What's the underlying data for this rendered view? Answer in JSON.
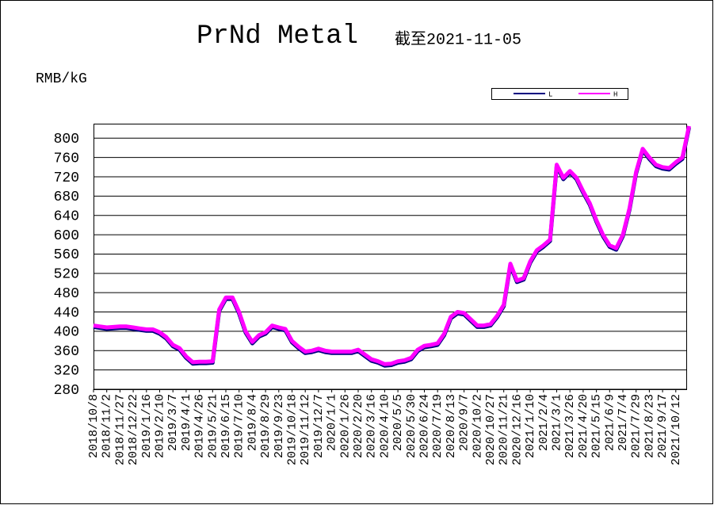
{
  "chart_data": {
    "type": "line",
    "title": "PrNd Metal",
    "subtitle": "截至2021-11-05",
    "y_label": "RMB/kG",
    "categories": [
      "2018/10/8",
      null,
      "2018/11/2",
      null,
      "2018/11/27",
      null,
      "2018/12/22",
      null,
      "2019/1/16",
      null,
      "2019/2/10",
      null,
      "2019/3/7",
      null,
      "2019/4/1",
      null,
      "2019/4/26",
      null,
      "2019/5/21",
      null,
      "2019/6/15",
      null,
      "2019/7/10",
      null,
      "2019/8/4",
      null,
      "2019/8/29",
      null,
      "2019/9/23",
      null,
      "2019/10/18",
      null,
      "2019/11/12",
      null,
      "2019/12/7",
      null,
      "2020/1/1",
      null,
      "2020/1/26",
      null,
      "2020/2/20",
      null,
      "2020/3/16",
      null,
      "2020/4/10",
      null,
      "2020/5/5",
      null,
      "2020/5/30",
      null,
      "2020/6/24",
      null,
      "2020/7/19",
      null,
      "2020/8/13",
      null,
      "2020/9/7",
      null,
      "2020/10/2",
      null,
      "2020/10/27",
      null,
      "2020/11/21",
      null,
      "2020/12/16",
      null,
      "2021/1/10",
      null,
      "2021/2/4",
      null,
      "2021/3/1",
      null,
      "2021/3/26",
      null,
      "2021/4/20",
      null,
      "2021/5/15",
      null,
      "2021/6/9",
      null,
      "2021/7/4",
      null,
      "2021/7/29",
      null,
      "2021/8/23",
      null,
      "2021/9/17",
      null,
      "2021/10/12",
      null,
      null
    ],
    "series": [
      {
        "name": "L",
        "color": "#000080",
        "values": [
          409,
          407,
          405,
          406,
          407,
          407,
          405,
          403,
          401,
          401,
          395,
          385,
          369,
          362,
          345,
          333,
          334,
          334,
          335,
          442,
          467,
          467,
          437,
          397,
          375,
          389,
          395,
          409,
          405,
          402,
          377,
          365,
          355,
          357,
          361,
          357,
          355,
          355,
          355,
          355,
          359,
          349,
          339,
          335,
          329,
          330,
          335,
          337,
          342,
          359,
          367,
          369,
          372,
          392,
          427,
          437,
          435,
          422,
          409,
          409,
          412,
          429,
          452,
          537,
          502,
          507,
          542,
          565,
          575,
          587,
          742,
          715,
          729,
          715,
          687,
          662,
          627,
          597,
          575,
          569,
          597,
          652,
          727,
          775,
          757,
          742,
          737,
          735,
          747,
          757,
          822
        ]
      },
      {
        "name": "H",
        "color": "#ff00ff",
        "values": [
          412,
          410,
          408,
          409,
          410,
          410,
          408,
          406,
          404,
          404,
          398,
          388,
          372,
          365,
          348,
          336,
          337,
          337,
          338,
          445,
          470,
          470,
          440,
          400,
          378,
          392,
          398,
          412,
          408,
          405,
          380,
          368,
          358,
          360,
          364,
          360,
          358,
          358,
          358,
          358,
          362,
          352,
          342,
          338,
          332,
          333,
          338,
          340,
          345,
          362,
          370,
          372,
          375,
          395,
          430,
          440,
          438,
          425,
          412,
          412,
          415,
          432,
          455,
          540,
          505,
          510,
          545,
          568,
          578,
          590,
          745,
          718,
          732,
          718,
          690,
          665,
          630,
          600,
          578,
          572,
          600,
          655,
          730,
          778,
          760,
          745,
          740,
          738,
          750,
          760,
          825
        ]
      }
    ],
    "ylim": [
      280,
      830
    ],
    "yticks": [
      280,
      320,
      360,
      400,
      440,
      480,
      520,
      560,
      600,
      640,
      680,
      720,
      760,
      800
    ],
    "grid": true
  }
}
